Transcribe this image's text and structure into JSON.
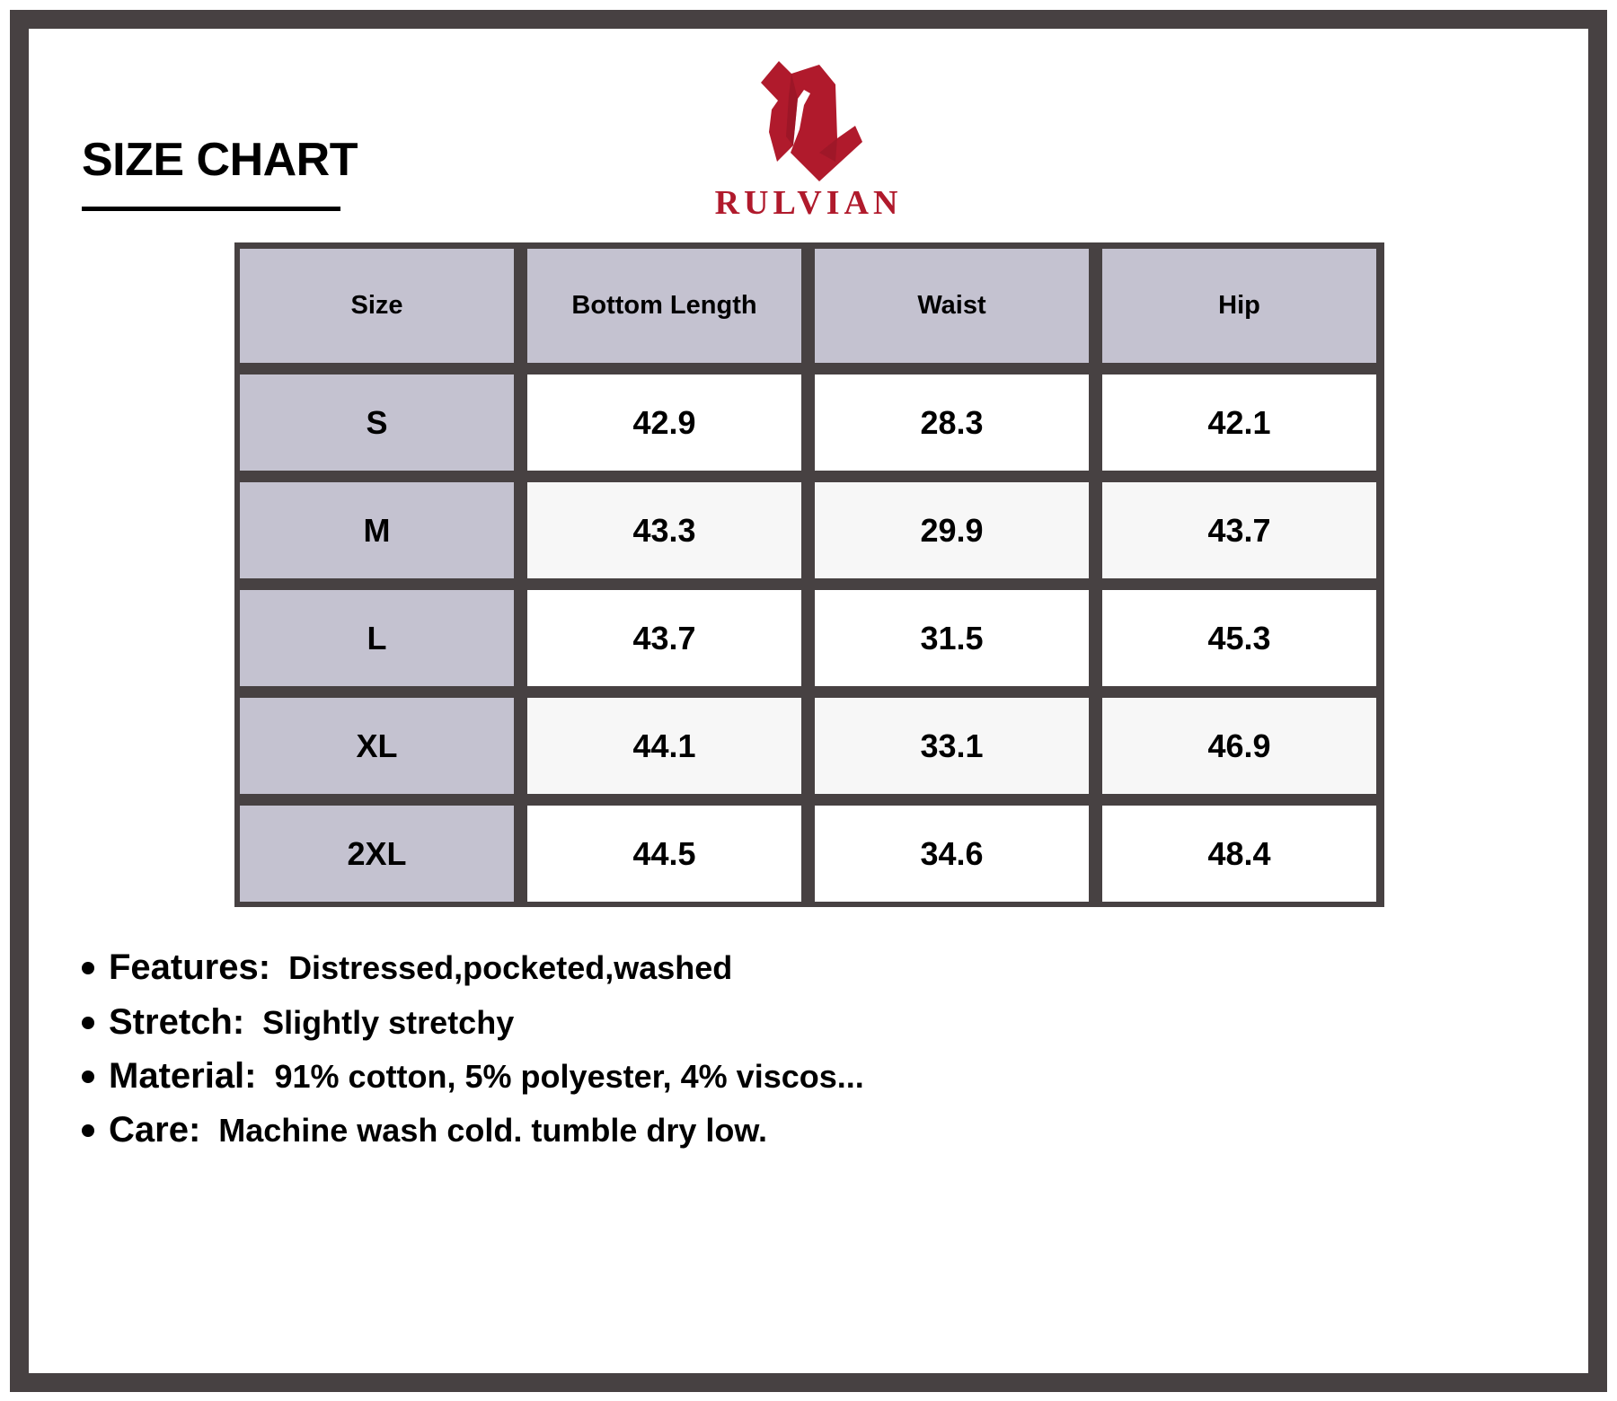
{
  "title": "SIZE CHART",
  "brand": {
    "name": "RULVIAN",
    "color": "#b01a2c"
  },
  "colors": {
    "frame": "#474142",
    "header_bg": "#c4c2d0",
    "alt_row_bg": "#f7f7f7"
  },
  "table": {
    "headers": [
      "Size",
      "Bottom Length",
      "Waist",
      "Hip"
    ],
    "rows": [
      [
        "S",
        "42.9",
        "28.3",
        "42.1"
      ],
      [
        "M",
        "43.3",
        "29.9",
        "43.7"
      ],
      [
        "L",
        "43.7",
        "31.5",
        "45.3"
      ],
      [
        "XL",
        "44.1",
        "33.1",
        "46.9"
      ],
      [
        "2XL",
        "44.5",
        "34.6",
        "48.4"
      ]
    ]
  },
  "details": [
    {
      "label": "Features:",
      "value": "Distressed,pocketed,washed"
    },
    {
      "label": "Stretch:",
      "value": "Slightly stretchy"
    },
    {
      "label": "Material:",
      "value": "91% cotton, 5% polyester, 4% viscos..."
    },
    {
      "label": "Care:",
      "value": "Machine wash cold. tumble dry low."
    }
  ]
}
